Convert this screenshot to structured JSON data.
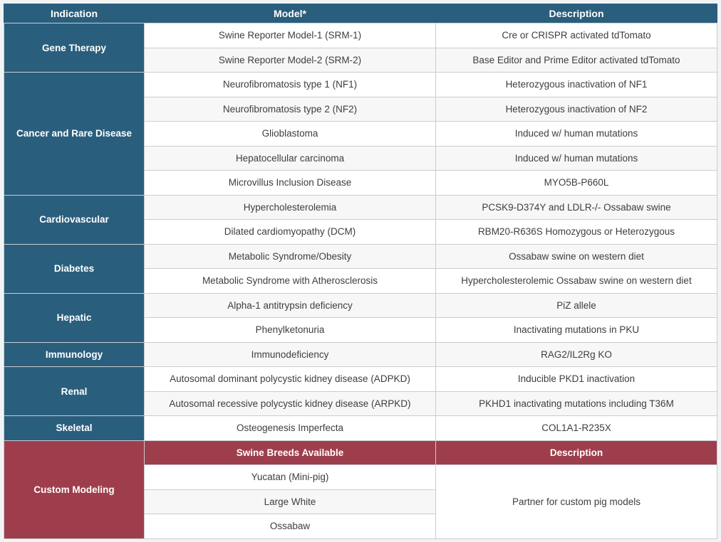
{
  "header": {
    "indication": "Indication",
    "model": "Model*",
    "description": "Description"
  },
  "groups": [
    {
      "label": "Gene Therapy",
      "rows": [
        {
          "model": "Swine Reporter Model-1 (SRM-1)",
          "desc": "Cre or CRISPR activated tdTomato"
        },
        {
          "model": "Swine Reporter Model-2 (SRM-2)",
          "desc": "Base Editor and Prime Editor activated tdTomato"
        }
      ]
    },
    {
      "label": "Cancer and Rare Disease",
      "rows": [
        {
          "model": "Neurofibromatosis type 1 (NF1)",
          "desc": "Heterozygous inactivation of NF1"
        },
        {
          "model": "Neurofibromatosis type 2 (NF2)",
          "desc": "Heterozygous inactivation of NF2"
        },
        {
          "model": "Glioblastoma",
          "desc": "Induced w/ human mutations"
        },
        {
          "model": "Hepatocellular carcinoma",
          "desc": "Induced w/ human mutations"
        },
        {
          "model": "Microvillus Inclusion Disease",
          "desc": "MYO5B-P660L"
        }
      ]
    },
    {
      "label": "Cardiovascular",
      "rows": [
        {
          "model": "Hypercholesterolemia",
          "desc": "PCSK9-D374Y and LDLR-/- Ossabaw swine"
        },
        {
          "model": "Dilated cardiomyopathy (DCM)",
          "desc": "RBM20-R636S Homozygous or Heterozygous"
        }
      ]
    },
    {
      "label": "Diabetes",
      "rows": [
        {
          "model": "Metabolic Syndrome/Obesity",
          "desc": "Ossabaw swine on western diet"
        },
        {
          "model": "Metabolic Syndrome with Atherosclerosis",
          "desc": "Hypercholesterolemic Ossabaw swine on western diet"
        }
      ]
    },
    {
      "label": "Hepatic",
      "rows": [
        {
          "model": "Alpha-1 antitrypsin deficiency",
          "desc": "PiZ allele"
        },
        {
          "model": "Phenylketonuria",
          "desc": "Inactivating mutations in PKU"
        }
      ]
    },
    {
      "label": "Immunology",
      "rows": [
        {
          "model": "Immunodeficiency",
          "desc": "RAG2/IL2Rg KO"
        }
      ]
    },
    {
      "label": "Renal",
      "rows": [
        {
          "model": "Autosomal dominant polycystic kidney disease (ADPKD)",
          "desc": "Inducible PKD1 inactivation"
        },
        {
          "model": "Autosomal recessive polycystic kidney disease (ARPKD)",
          "desc": "PKHD1 inactivating mutations including T36M"
        }
      ]
    },
    {
      "label": "Skeletal",
      "rows": [
        {
          "model": "Osteogenesis Imperfecta",
          "desc": "COL1A1-R235X"
        }
      ]
    }
  ],
  "custom": {
    "label": "Custom Modeling",
    "sub": {
      "model": "Swine Breeds Available",
      "desc": "Description"
    },
    "breeds": [
      "Yucatan (Mini-pig)",
      "Large White",
      "Ossabaw"
    ],
    "description": "Partner for custom pig models"
  },
  "colors": {
    "header_teal": "#2a5e7d",
    "custom_red": "#9e3e4c",
    "row_stripe": "#f7f7f7",
    "border": "#c9cdd0",
    "body_text": "#3e3e3e"
  }
}
